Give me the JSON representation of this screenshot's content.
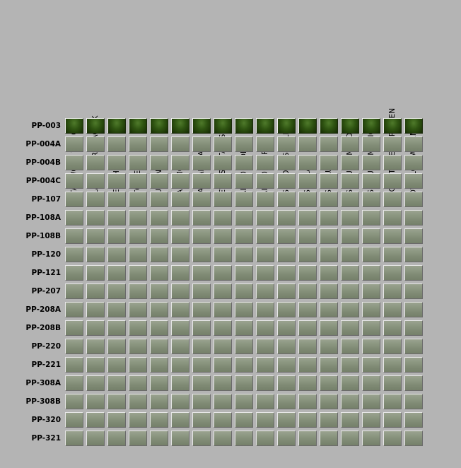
{
  "columns": [
    "STAT WORD TAG OK",
    "ALARM WORD TAG OK",
    "HEALTHY",
    "STOPPED",
    "RUNNING",
    "SAFE MODE",
    "MANUAL STATUS",
    "REVERSE STATUS",
    "FAIL TO STOP",
    "FAIL TO START",
    "VSD COMMS FAILED",
    "VSD ALARM",
    "VSD FAULT",
    "VSD CURRENT LOW",
    "VSD CURRENT HIGH",
    "CICRUIT BREAKER OPEN",
    "LOW FLOW ALARM"
  ],
  "rows": [
    {
      "label": "PP-003",
      "states": [
        1,
        1,
        1,
        1,
        1,
        1,
        1,
        1,
        1,
        1,
        1,
        1,
        1,
        1,
        1,
        1,
        1
      ]
    },
    {
      "label": "PP-004A",
      "states": [
        0,
        0,
        0,
        0,
        0,
        0,
        0,
        0,
        0,
        0,
        0,
        0,
        0,
        0,
        0,
        0,
        0
      ]
    },
    {
      "label": "PP-004B",
      "states": [
        0,
        0,
        0,
        0,
        0,
        0,
        0,
        0,
        0,
        0,
        0,
        0,
        0,
        0,
        0,
        0,
        0
      ]
    },
    {
      "label": "PP-004C",
      "states": [
        0,
        0,
        0,
        0,
        0,
        0,
        0,
        0,
        0,
        0,
        0,
        0,
        0,
        0,
        0,
        0,
        0
      ]
    },
    {
      "label": "PP-107",
      "states": [
        0,
        0,
        0,
        0,
        0,
        0,
        0,
        0,
        0,
        0,
        0,
        0,
        0,
        0,
        0,
        0,
        0
      ]
    },
    {
      "label": "PP-108A",
      "states": [
        0,
        0,
        0,
        0,
        0,
        0,
        0,
        0,
        0,
        0,
        0,
        0,
        0,
        0,
        0,
        0,
        0
      ]
    },
    {
      "label": "PP-108B",
      "states": [
        0,
        0,
        0,
        0,
        0,
        0,
        0,
        0,
        0,
        0,
        0,
        0,
        0,
        0,
        0,
        0,
        0
      ]
    },
    {
      "label": "PP-120",
      "states": [
        0,
        0,
        0,
        0,
        0,
        0,
        0,
        0,
        0,
        0,
        0,
        0,
        0,
        0,
        0,
        0,
        0
      ]
    },
    {
      "label": "PP-121",
      "states": [
        0,
        0,
        0,
        0,
        0,
        0,
        0,
        0,
        0,
        0,
        0,
        0,
        0,
        0,
        0,
        0,
        0
      ]
    },
    {
      "label": "PP-207",
      "states": [
        0,
        0,
        0,
        0,
        0,
        0,
        0,
        0,
        0,
        0,
        0,
        0,
        0,
        0,
        0,
        0,
        0
      ]
    },
    {
      "label": "PP-208A",
      "states": [
        0,
        0,
        0,
        0,
        0,
        0,
        0,
        0,
        0,
        0,
        0,
        0,
        0,
        0,
        0,
        0,
        0
      ]
    },
    {
      "label": "PP-208B",
      "states": [
        0,
        0,
        0,
        0,
        0,
        0,
        0,
        0,
        0,
        0,
        0,
        0,
        0,
        0,
        0,
        0,
        0
      ]
    },
    {
      "label": "PP-220",
      "states": [
        0,
        0,
        0,
        0,
        0,
        0,
        0,
        0,
        0,
        0,
        0,
        0,
        0,
        0,
        0,
        0,
        0
      ]
    },
    {
      "label": "PP-221",
      "states": [
        0,
        0,
        0,
        0,
        0,
        0,
        0,
        0,
        0,
        0,
        0,
        0,
        0,
        0,
        0,
        0,
        0
      ]
    },
    {
      "label": "PP-308A",
      "states": [
        0,
        0,
        0,
        0,
        0,
        0,
        0,
        0,
        0,
        0,
        0,
        0,
        0,
        0,
        0,
        0,
        0
      ]
    },
    {
      "label": "PP-308B",
      "states": [
        0,
        0,
        0,
        0,
        0,
        0,
        0,
        0,
        0,
        0,
        0,
        0,
        0,
        0,
        0,
        0,
        0
      ]
    },
    {
      "label": "PP-320",
      "states": [
        0,
        0,
        0,
        0,
        0,
        0,
        0,
        0,
        0,
        0,
        0,
        0,
        0,
        0,
        0,
        0,
        0
      ]
    },
    {
      "label": "PP-321",
      "states": [
        0,
        0,
        0,
        0,
        0,
        0,
        0,
        0,
        0,
        0,
        0,
        0,
        0,
        0,
        0,
        0,
        0
      ]
    }
  ],
  "colors": {
    "background": "#b4b4b4",
    "led_on": "#2f5412",
    "led_off": "#8b9680"
  }
}
